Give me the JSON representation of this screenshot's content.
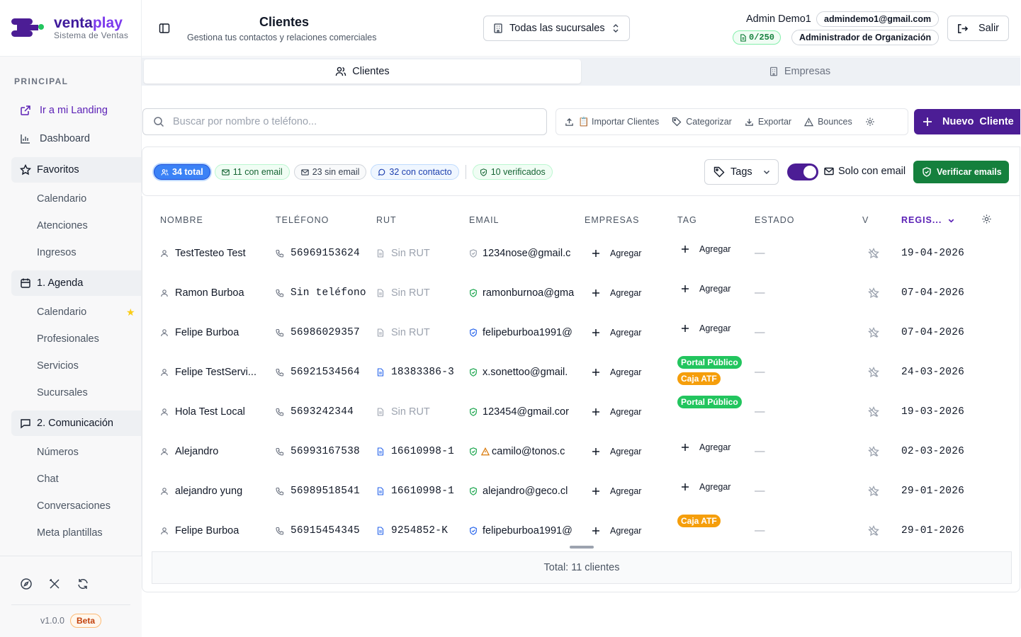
{
  "brand": {
    "name_a": "venta",
    "name_b": "play",
    "subtitle": "Sistema de Ventas"
  },
  "sidebar": {
    "section_label": "PRINCIPAL",
    "landing_link": "Ir a mi Landing",
    "dashboard": "Dashboard",
    "groups": [
      {
        "label": "Favoritos",
        "items": [
          "Calendario",
          "Atenciones",
          "Ingresos"
        ]
      },
      {
        "label": "1. Agenda",
        "items": [
          "Calendario",
          "Profesionales",
          "Servicios",
          "Sucursales"
        ]
      },
      {
        "label": "2. Comunicación",
        "items": [
          "Números",
          "Chat",
          "Conversaciones",
          "Meta plantillas"
        ]
      }
    ],
    "version": "v1.0.0",
    "beta": "Beta"
  },
  "header": {
    "title": "Clientes",
    "subtitle": "Gestiona tus contactos y relaciones comerciales",
    "branch_select": "Todas las sucursales",
    "user_name": "Admin Demo1",
    "user_email": "admindemo1@gmail.com",
    "quota": "0/250",
    "role": "Administrador de Organización",
    "logout": "Salir"
  },
  "tabs": [
    {
      "label": "Clientes",
      "active": true
    },
    {
      "label": "Empresas",
      "active": false
    }
  ],
  "toolbar": {
    "search_placeholder": "Buscar por nombre o teléfono...",
    "import": "📋 Importar Clientes",
    "categorize": "Categorizar",
    "export": "Exportar",
    "bounces": "Bounces",
    "new_client": "Nuevo  Cliente"
  },
  "filters": {
    "total": "34 total",
    "with_email": "11 con email",
    "without_email": "23 sin email",
    "with_contact": "32 con contacto",
    "verified": "10 verificados",
    "tags": "Tags",
    "only_email": "Solo con email",
    "only_email_on": true,
    "verify": "Verificar emails"
  },
  "table": {
    "columns": [
      "NOMBRE",
      "TELÉFONO",
      "RUT",
      "EMAIL",
      "EMPRESAS",
      "TAG",
      "ESTADO",
      "V",
      "REGIS..."
    ],
    "add_label": "Agregar",
    "empty_state": "—",
    "rows": [
      {
        "name": "TestTesteo Test",
        "phone": "56969153624",
        "rut": "Sin RUT",
        "rut_missing": true,
        "email": "1234nose@gmail.c",
        "email_status": "gray",
        "warn": false,
        "tags": [],
        "date": "19-04-2026"
      },
      {
        "name": "Ramon Burboa",
        "phone": "Sin teléfono",
        "rut": "Sin RUT",
        "rut_missing": true,
        "email": "ramonburnoa@gma",
        "email_status": "green",
        "warn": false,
        "tags": [],
        "date": "07-04-2026"
      },
      {
        "name": "Felipe Burboa",
        "phone": "56986029357",
        "rut": "Sin RUT",
        "rut_missing": true,
        "email": "felipeburboa1991@",
        "email_status": "blue",
        "warn": false,
        "tags": [],
        "date": "07-04-2026"
      },
      {
        "name": "Felipe TestServi...",
        "phone": "56921534564",
        "rut": "18383386-3",
        "rut_missing": false,
        "email": "x.sonettoo@gmail.",
        "email_status": "green",
        "warn": false,
        "tags": [
          {
            "label": "Portal Público",
            "color": "green"
          },
          {
            "label": "Caja ATF",
            "color": "orange"
          }
        ],
        "date": "24-03-2026"
      },
      {
        "name": "Hola Test Local",
        "phone": "5693242344",
        "rut": "Sin RUT",
        "rut_missing": true,
        "email": "123454@gmail.cor",
        "email_status": "green",
        "warn": false,
        "tags": [
          {
            "label": "Portal Público",
            "color": "green"
          }
        ],
        "date": "19-03-2026"
      },
      {
        "name": "Alejandro",
        "phone": "56993167538",
        "rut": "16610998-1",
        "rut_missing": false,
        "email": "camilo@tonos.c",
        "email_status": "green",
        "warn": true,
        "tags": [],
        "date": "02-03-2026"
      },
      {
        "name": "alejandro yung",
        "phone": "56989518541",
        "rut": "16610998-1",
        "rut_missing": false,
        "email": "alejandro@geco.cl",
        "email_status": "green",
        "warn": false,
        "tags": [],
        "date": "29-01-2026"
      },
      {
        "name": "Felipe Burboa",
        "phone": "56915454345",
        "rut": "9254852-K",
        "rut_missing": false,
        "email": "felipeburboa1991@",
        "email_status": "blue",
        "warn": false,
        "tags": [
          {
            "label": "Caja ATF",
            "color": "orange"
          }
        ],
        "date": "29-01-2026"
      }
    ],
    "footer": "Total: 11 clientes"
  },
  "colors": {
    "brand": "#4c1d95",
    "accent": "#7c3aed",
    "success": "#15803d",
    "info": "#3b82f6"
  }
}
